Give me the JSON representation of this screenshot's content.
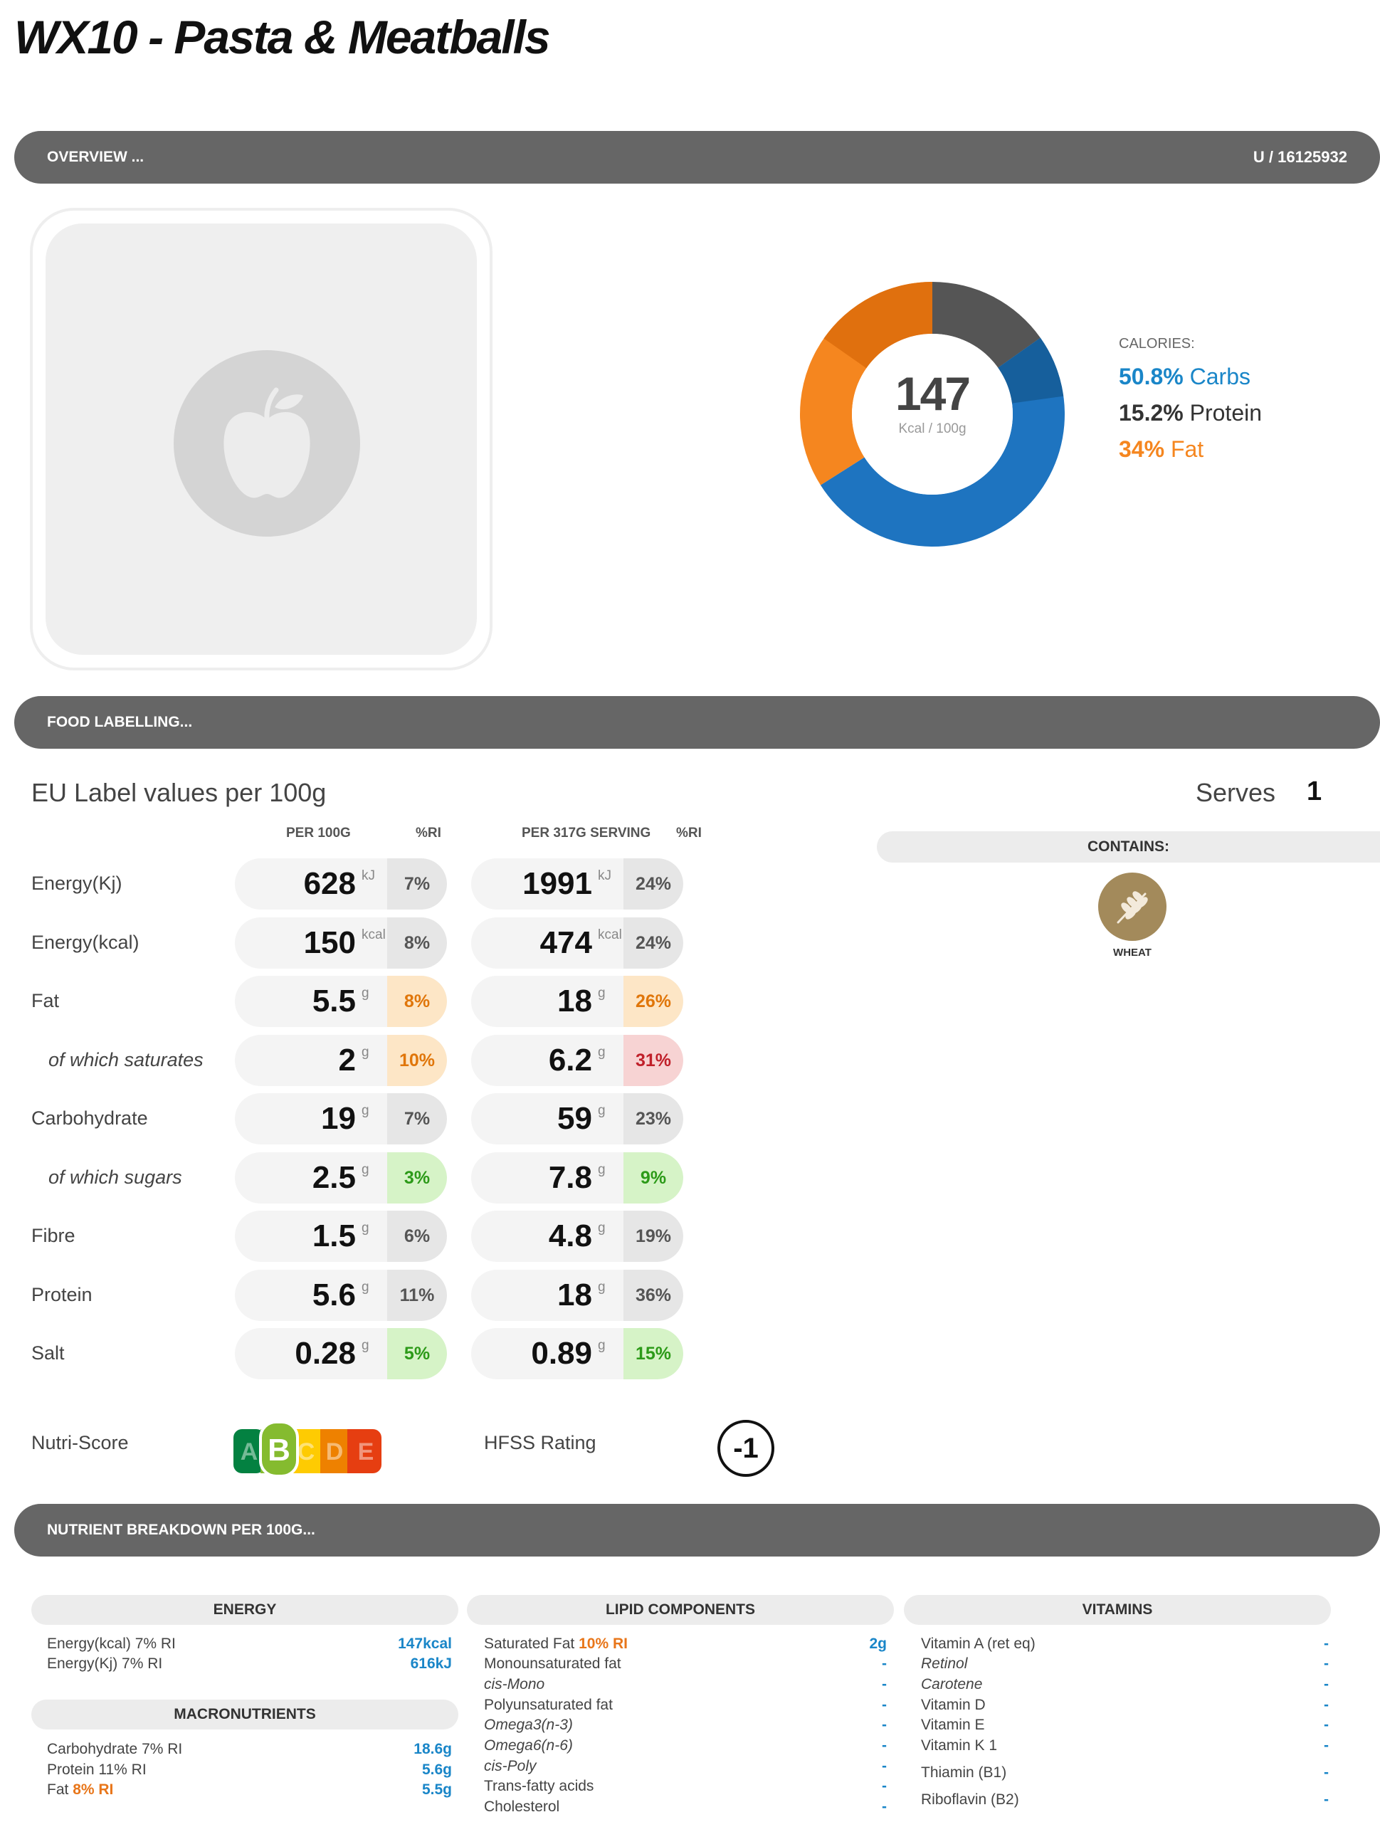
{
  "page_title": "WX10 - Pasta & Meatballs",
  "overview": {
    "header": "OVERVIEW ...",
    "code": "U / 16125932"
  },
  "calories": {
    "value": "147",
    "unit": "Kcal / 100g",
    "title": "CALORIES:",
    "carbs_pct": "50.8%",
    "carbs_label": "Carbs",
    "protein_pct": "15.2%",
    "protein_label": "Protein",
    "fat_pct": "34%",
    "fat_label": "Fat",
    "colors": {
      "carbs": "#1e74c0",
      "carbs_sugar": "#165f9c",
      "protein": "#555555",
      "fat": "#f5861f",
      "fat_sat": "#e0700e"
    }
  },
  "chart_data": {
    "type": "pie",
    "categories": [
      "Carbs",
      "Protein",
      "Fat"
    ],
    "values": [
      50.8,
      15.2,
      34
    ]
  },
  "labelling": {
    "header": "FOOD LABELLING...",
    "eu_title": "EU Label values per 100g",
    "serves_label": "Serves",
    "serves_value": "1",
    "col_per100": "PER 100G",
    "col_ri1": "%RI",
    "col_serving": "PER 317G SERVING",
    "col_ri2": "%RI",
    "rows": [
      {
        "label": "Energy(Kj)",
        "sub": false,
        "v100": "628",
        "u": "kJ",
        "ri100": "7%",
        "c100": "grey",
        "vs": "1991",
        "ris": "24%",
        "cs": "grey"
      },
      {
        "label": "Energy(kcal)",
        "sub": false,
        "v100": "150",
        "u": "kcal",
        "ri100": "8%",
        "c100": "grey",
        "vs": "474",
        "ris": "24%",
        "cs": "grey"
      },
      {
        "label": "Fat",
        "sub": false,
        "v100": "5.5",
        "u": "g",
        "ri100": "8%",
        "c100": "amber",
        "vs": "18",
        "ris": "26%",
        "cs": "amber"
      },
      {
        "label": "of which saturates",
        "sub": true,
        "v100": "2",
        "u": "g",
        "ri100": "10%",
        "c100": "amber",
        "vs": "6.2",
        "ris": "31%",
        "cs": "red"
      },
      {
        "label": "Carbohydrate",
        "sub": false,
        "v100": "19",
        "u": "g",
        "ri100": "7%",
        "c100": "grey",
        "vs": "59",
        "ris": "23%",
        "cs": "grey"
      },
      {
        "label": "of which sugars",
        "sub": true,
        "v100": "2.5",
        "u": "g",
        "ri100": "3%",
        "c100": "green",
        "vs": "7.8",
        "ris": "9%",
        "cs": "green"
      },
      {
        "label": "Fibre",
        "sub": false,
        "v100": "1.5",
        "u": "g",
        "ri100": "6%",
        "c100": "grey",
        "vs": "4.8",
        "ris": "19%",
        "cs": "grey"
      },
      {
        "label": "Protein",
        "sub": false,
        "v100": "5.6",
        "u": "g",
        "ri100": "11%",
        "c100": "grey",
        "vs": "18",
        "ris": "36%",
        "cs": "grey"
      },
      {
        "label": "Salt",
        "sub": false,
        "v100": "0.28",
        "u": "g",
        "ri100": "5%",
        "c100": "green",
        "vs": "0.89",
        "ris": "15%",
        "cs": "green"
      }
    ],
    "contains_title": "CONTAINS:",
    "allergen": "WHEAT",
    "allergen_icon": "wheat-icon",
    "nutri_label": "Nutri-Score",
    "nutri_grades": [
      "A",
      "B",
      "C",
      "D",
      "E"
    ],
    "nutri_selected": "B",
    "hfss_label": "HFSS Rating",
    "hfss_value": "-1"
  },
  "breakdown": {
    "header": "NUTRIENT BREAKDOWN PER 100G...",
    "energy_title": "ENERGY",
    "energy_kcal_label": "Energy(kcal) 7% RI",
    "energy_kcal_value": "147kcal",
    "energy_kj_label": "Energy(Kj) 7% RI",
    "energy_kj_value": "616kJ",
    "macro_title": "MACRONUTRIENTS",
    "carb_label": "Carbohydrate 7% RI",
    "carb_value": "18.6g",
    "protein_label": "Protein 11% RI",
    "protein_value": "5.6g",
    "fat_label": "Fat",
    "fat_ri": "8% RI",
    "fat_value": "5.5g",
    "lipid_title": "LIPID COMPONENTS",
    "satfat_label": "Saturated Fat",
    "satfat_ri": "10% RI",
    "satfat_value": "2g",
    "lipids": [
      {
        "label": "Monounsaturated fat",
        "italic": false,
        "value": "-"
      },
      {
        "label": "cis-Mono",
        "italic": true,
        "value": "-"
      },
      {
        "label": "Polyunsaturated fat",
        "italic": false,
        "value": "-"
      },
      {
        "label": "Omega3(n-3)",
        "italic": true,
        "value": "-"
      },
      {
        "label": "Omega6(n-6)",
        "italic": true,
        "value": "-"
      },
      {
        "label": "cis-Poly",
        "italic": true,
        "value": "-"
      },
      {
        "label": "Trans-fatty acids",
        "italic": false,
        "value": "-"
      },
      {
        "label": "Cholesterol",
        "italic": false,
        "value": "-"
      }
    ],
    "vitamins_title": "VITAMINS",
    "vitamins": [
      {
        "label": "Vitamin A (ret eq)",
        "italic": false,
        "value": "-"
      },
      {
        "label": "Retinol",
        "italic": true,
        "value": "-"
      },
      {
        "label": "Carotene",
        "italic": true,
        "value": "-"
      },
      {
        "label": "Vitamin D",
        "italic": false,
        "value": "-"
      },
      {
        "label": "Vitamin E",
        "italic": false,
        "value": "-"
      },
      {
        "label": "Vitamin K 1",
        "italic": false,
        "value": "-"
      },
      {
        "label": "Thiamin (B1)",
        "italic": false,
        "value": "-"
      },
      {
        "label": "Riboflavin (B2)",
        "italic": false,
        "value": "-"
      }
    ]
  }
}
